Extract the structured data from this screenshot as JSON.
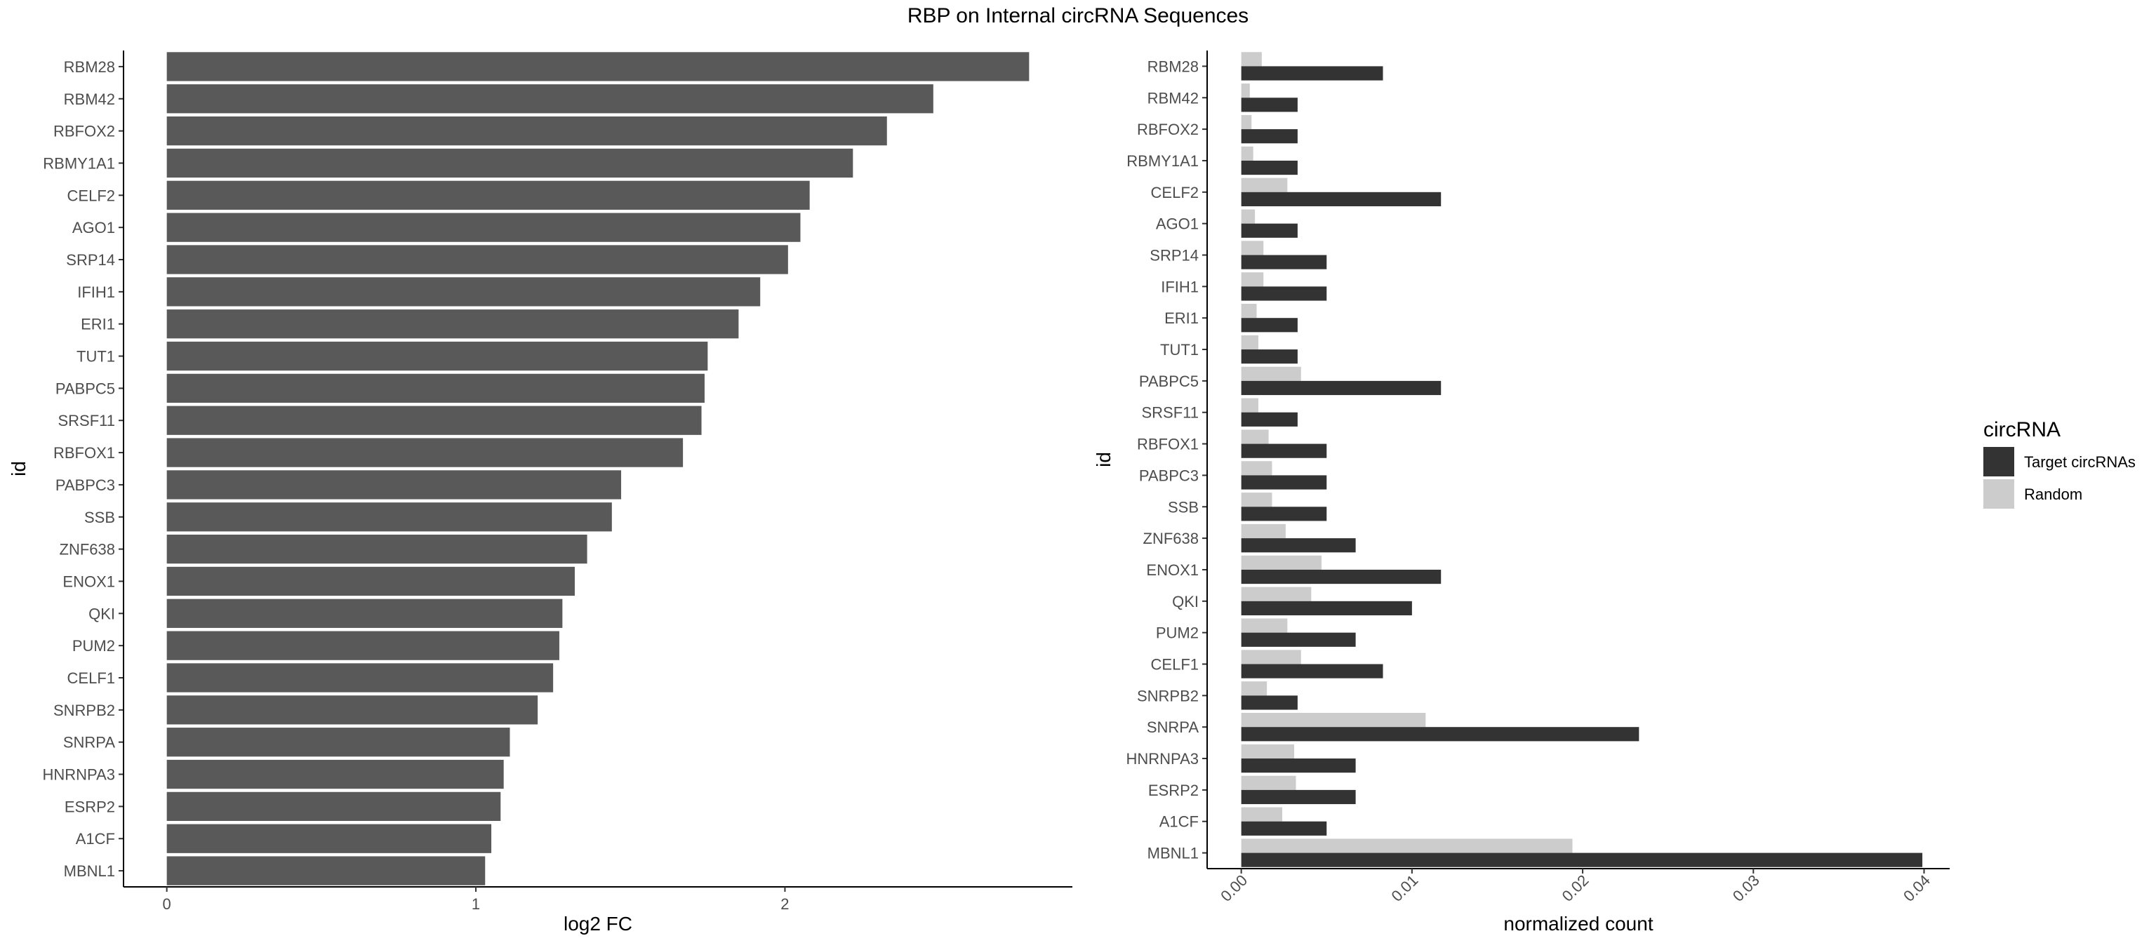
{
  "page_title": "RBP on Internal circRNA Sequences",
  "chart_data": [
    {
      "type": "bar",
      "orientation": "horizontal",
      "xlabel": "log2 FC",
      "ylabel": "id",
      "xlim": [
        -0.14,
        2.93
      ],
      "xticks": [
        0,
        1,
        2
      ],
      "categories": [
        "RBM28",
        "RBM42",
        "RBFOX2",
        "RBMY1A1",
        "CELF2",
        "AGO1",
        "SRP14",
        "IFIH1",
        "ERI1",
        "TUT1",
        "PABPC5",
        "SRSF11",
        "RBFOX1",
        "PABPC3",
        "SSB",
        "ZNF638",
        "ENOX1",
        "QKI",
        "PUM2",
        "CELF1",
        "SNRPB2",
        "SNRPA",
        "HNRNPA3",
        "ESRP2",
        "A1CF",
        "MBNL1"
      ],
      "values": [
        2.79,
        2.48,
        2.33,
        2.22,
        2.08,
        2.05,
        2.01,
        1.92,
        1.85,
        1.75,
        1.74,
        1.73,
        1.67,
        1.47,
        1.44,
        1.36,
        1.32,
        1.28,
        1.27,
        1.25,
        1.2,
        1.11,
        1.09,
        1.08,
        1.05,
        1.03
      ],
      "bar_color": "#595959",
      "grid": false
    },
    {
      "type": "bar",
      "orientation": "horizontal",
      "grouped": true,
      "xlabel": "normalized count",
      "ylabel": "id",
      "xlim": [
        -0.002,
        0.0415
      ],
      "xticks": [
        0.0,
        0.01,
        0.02,
        0.03,
        0.04
      ],
      "xtick_labels": [
        "0.00",
        "0.01",
        "0.02",
        "0.03",
        "0.04"
      ],
      "categories": [
        "RBM28",
        "RBM42",
        "RBFOX2",
        "RBMY1A1",
        "CELF2",
        "AGO1",
        "SRP14",
        "IFIH1",
        "ERI1",
        "TUT1",
        "PABPC5",
        "SRSF11",
        "RBFOX1",
        "PABPC3",
        "SSB",
        "ZNF638",
        "ENOX1",
        "QKI",
        "PUM2",
        "CELF1",
        "SNRPB2",
        "SNRPA",
        "HNRNPA3",
        "ESRP2",
        "A1CF",
        "MBNL1"
      ],
      "legend_title": "circRNA",
      "legend_position": "right",
      "series": [
        {
          "name": "Target circRNAs",
          "color": "#333333",
          "values": [
            0.0083,
            0.0033,
            0.0033,
            0.0033,
            0.0117,
            0.0033,
            0.005,
            0.005,
            0.0033,
            0.0033,
            0.0117,
            0.0033,
            0.005,
            0.005,
            0.005,
            0.0067,
            0.0117,
            0.01,
            0.0067,
            0.0083,
            0.0033,
            0.0233,
            0.0067,
            0.0067,
            0.005,
            0.0399
          ]
        },
        {
          "name": "Random",
          "color": "#cccccc",
          "values": [
            0.0012,
            0.0005,
            0.0006,
            0.0007,
            0.0027,
            0.0008,
            0.0013,
            0.0013,
            0.0009,
            0.001,
            0.0035,
            0.001,
            0.0016,
            0.0018,
            0.0018,
            0.0026,
            0.0047,
            0.0041,
            0.0027,
            0.0035,
            0.0015,
            0.0108,
            0.0031,
            0.0032,
            0.0024,
            0.0194
          ]
        }
      ],
      "grid": false
    }
  ]
}
